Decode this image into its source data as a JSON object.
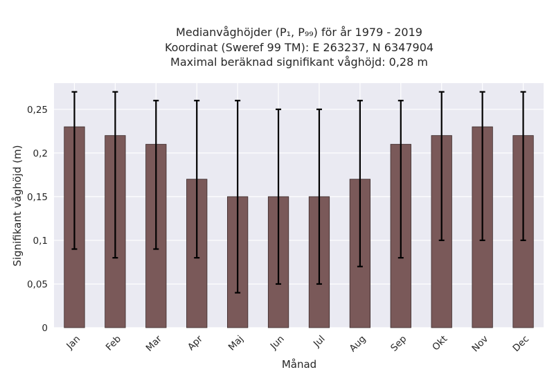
{
  "chart_data": {
    "type": "bar",
    "title_lines": [
      "Medianvåghöjder (P₁, P₉₉) för år 1979 - 2019",
      "Koordinat (Sweref 99 TM): E 263237, N 6347904",
      "Maximal beräknad signifikant våghöjd: 0,28 m"
    ],
    "xlabel": "Månad",
    "ylabel": "Signifikant våghöjd (m)",
    "categories": [
      "Jan",
      "Feb",
      "Mar",
      "Apr",
      "Maj",
      "Jun",
      "Jul",
      "Aug",
      "Sep",
      "Okt",
      "Nov",
      "Dec"
    ],
    "values": [
      0.23,
      0.22,
      0.21,
      0.17,
      0.15,
      0.15,
      0.15,
      0.17,
      0.21,
      0.22,
      0.23,
      0.22
    ],
    "error_low": [
      0.09,
      0.08,
      0.09,
      0.08,
      0.04,
      0.05,
      0.05,
      0.07,
      0.08,
      0.1,
      0.1,
      0.1
    ],
    "error_high": [
      0.27,
      0.27,
      0.26,
      0.26,
      0.26,
      0.25,
      0.25,
      0.26,
      0.26,
      0.27,
      0.27,
      0.27
    ],
    "ylim": [
      0,
      0.28
    ],
    "yticks": [
      0,
      0.05,
      0.1,
      0.15,
      0.2,
      0.25
    ],
    "ytick_labels": [
      "0",
      "0,05",
      "0,1",
      "0,15",
      "0,2",
      "0,25"
    ],
    "grid": true,
    "colors": {
      "bar": "#7a5959",
      "bar_edge": "#3a2a2a",
      "error": "#000000",
      "plot_bg": "#eaeaf2",
      "grid": "#ffffff"
    }
  }
}
